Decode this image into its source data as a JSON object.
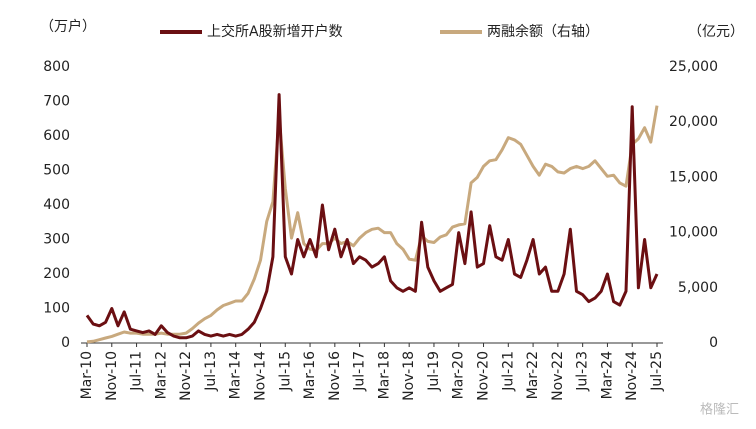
{
  "chart_data": {
    "type": "line",
    "y_label": "（万户）",
    "y2_label": "（亿元）",
    "watermark": "格隆汇",
    "categories": [
      "Mar-10",
      null,
      null,
      null,
      "Nov-10",
      null,
      null,
      null,
      "Jul-11",
      null,
      null,
      null,
      "Mar-12",
      null,
      null,
      null,
      "Nov-12",
      null,
      null,
      null,
      "Jul-13",
      null,
      null,
      null,
      "Mar-14",
      null,
      null,
      null,
      "Nov-14",
      null,
      null,
      null,
      "Jul-15",
      null,
      null,
      null,
      "Mar-16",
      null,
      null,
      null,
      "Nov-16",
      null,
      null,
      null,
      "Jul-17",
      null,
      null,
      null,
      "Mar-18",
      null,
      null,
      null,
      "Nov-18",
      null,
      null,
      null,
      "Jul-19",
      null,
      null,
      null,
      "Mar-20",
      null,
      null,
      null,
      "Nov-20",
      null,
      null,
      null,
      "Jul-21",
      null,
      null,
      null,
      "Mar-22",
      null,
      null,
      null,
      "Nov-22",
      null,
      null,
      null,
      "Jul-23",
      null,
      null,
      null,
      "Mar-24",
      null,
      null,
      null,
      "Nov-24",
      null,
      null,
      null,
      "Jul-25"
    ],
    "series": [
      {
        "name": "上交所A股新增开户数",
        "color": "#6b0f12",
        "values": [
          80,
          55,
          50,
          60,
          100,
          50,
          90,
          40,
          35,
          30,
          35,
          25,
          50,
          30,
          20,
          15,
          15,
          20,
          35,
          25,
          20,
          25,
          20,
          25,
          20,
          25,
          40,
          60,
          100,
          150,
          250,
          720,
          250,
          200,
          300,
          250,
          300,
          250,
          400,
          270,
          330,
          250,
          300,
          230,
          250,
          240,
          220,
          230,
          250,
          180,
          160,
          150,
          160,
          150,
          350,
          220,
          180,
          150,
          160,
          170,
          320,
          230,
          380,
          220,
          230,
          340,
          250,
          240,
          300,
          200,
          190,
          240,
          300,
          200,
          220,
          150,
          150,
          200,
          330,
          150,
          140,
          120,
          130,
          150,
          200,
          120,
          110,
          150,
          685,
          160,
          300,
          160,
          200
        ]
      },
      {
        "name": "两融余额（右轴）",
        "color": "#c8a97e",
        "axis": "y2",
        "values": [
          100,
          150,
          300,
          450,
          600,
          800,
          1000,
          900,
          900,
          800,
          800,
          800,
          900,
          800,
          800,
          800,
          900,
          1300,
          1800,
          2200,
          2500,
          3000,
          3400,
          3600,
          3800,
          3800,
          4500,
          5800,
          7500,
          11000,
          12800,
          20500,
          14000,
          9500,
          11800,
          9000,
          8500,
          8400,
          9000,
          9000,
          9500,
          9000,
          9200,
          8800,
          9500,
          10000,
          10300,
          10400,
          10000,
          10000,
          9000,
          8500,
          7600,
          7500,
          9700,
          9200,
          9100,
          9600,
          9800,
          10500,
          10700,
          10800,
          14500,
          15000,
          16000,
          16500,
          16600,
          17500,
          18600,
          18400,
          18000,
          17000,
          16000,
          15200,
          16200,
          16000,
          15500,
          15400,
          15800,
          16000,
          15800,
          16000,
          16500,
          15800,
          15100,
          15200,
          14500,
          14200,
          18000,
          18500,
          19500,
          18200,
          21500
        ]
      }
    ],
    "ylim": [
      0,
      800
    ],
    "yticks": [
      0,
      100,
      200,
      300,
      400,
      500,
      600,
      700,
      800
    ],
    "y2lim": [
      0,
      25000
    ],
    "y2ticks": [
      0,
      {
        "value": 5000,
        "label": "5,000"
      },
      {
        "value": 10000,
        "label": "10,000"
      },
      {
        "value": 15000,
        "label": "15,000"
      },
      {
        "value": 20000,
        "label": "20,000"
      },
      {
        "value": 25000,
        "label": "25,000"
      }
    ],
    "grid": false
  }
}
